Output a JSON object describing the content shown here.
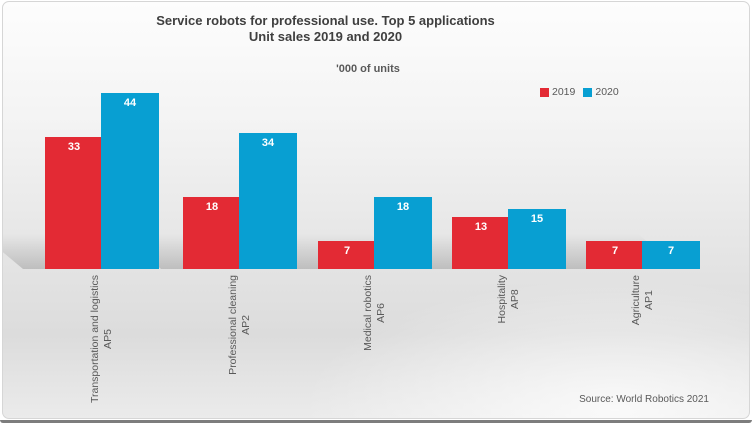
{
  "title": {
    "line1": "Service robots for professional use. Top 5 applications",
    "line2": "Unit sales 2019 and 2020"
  },
  "subtitle": "'000 of units",
  "source": "Source: World Robotics 2021",
  "chart_data": {
    "type": "bar",
    "title": "Service robots for professional use. Top 5 applications",
    "subtitle": "Unit sales 2019 and 2020",
    "unit_label": "'000 of units",
    "categories": [
      "Transportation and logistics AP5",
      "Professional cleaning AP2",
      "Medical robotics AP6",
      "Hospitality AP8",
      "Agriculture AP1"
    ],
    "category_lines": [
      [
        "Transportation and logistics",
        "AP5"
      ],
      [
        "Professional cleaning",
        "AP2"
      ],
      [
        "Medical robotics",
        "AP6"
      ],
      [
        "Hospitality",
        "AP8"
      ],
      [
        "Agriculture",
        "AP1"
      ]
    ],
    "series": [
      {
        "name": "2019",
        "color": "#E32A34",
        "values": [
          33,
          18,
          7,
          13,
          7
        ]
      },
      {
        "name": "2020",
        "color": "#089FD2",
        "values": [
          44,
          34,
          18,
          15,
          7
        ]
      }
    ],
    "ylim": [
      0,
      47
    ],
    "gridlines": false,
    "axes_visible": false,
    "value_labels": true,
    "legend_position": "top-right",
    "source": "World Robotics 2021"
  }
}
